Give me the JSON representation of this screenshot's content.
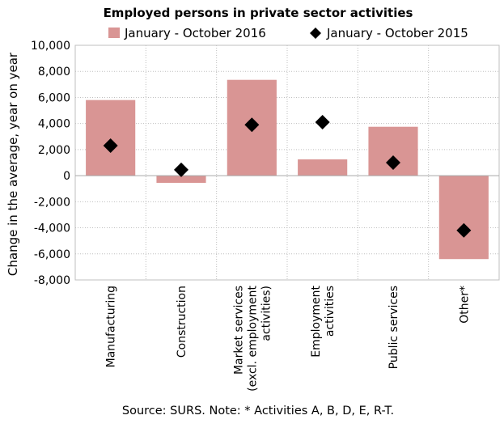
{
  "chart_data": {
    "type": "bar",
    "title": "Employed persons in private sector activities",
    "ylabel": "Change in the average, year on year",
    "xlabel": "",
    "ylim": [
      -8000,
      10000
    ],
    "yticks": [
      10000,
      8000,
      6000,
      4000,
      2000,
      0,
      -2000,
      -4000,
      -6000,
      -8000
    ],
    "ytick_labels": [
      "10,000",
      "8,000",
      "6,000",
      "4,000",
      "2,000",
      "0",
      "-2,000",
      "-4,000",
      "-6,000",
      "-8,000"
    ],
    "categories": [
      [
        "Manufacturing"
      ],
      [
        "Construction"
      ],
      [
        "Market services",
        "(excl. employment",
        "activities)"
      ],
      [
        "Employment",
        "activities"
      ],
      [
        "Public services"
      ],
      [
        "Other*"
      ]
    ],
    "series": [
      {
        "name": "January - October 2016",
        "type": "bar",
        "color": "#d99594",
        "values": [
          5800,
          -550,
          7350,
          1250,
          3750,
          -6400
        ]
      },
      {
        "name": "January - October 2015",
        "type": "marker",
        "marker": "diamond",
        "color": "#000000",
        "values": [
          2300,
          450,
          3900,
          4100,
          1000,
          -4200
        ]
      }
    ],
    "grid": "horizontal-dotted",
    "legend_position": "top",
    "source": "Source: SURS. Note: * Activities A, B, D, E, R-T."
  }
}
